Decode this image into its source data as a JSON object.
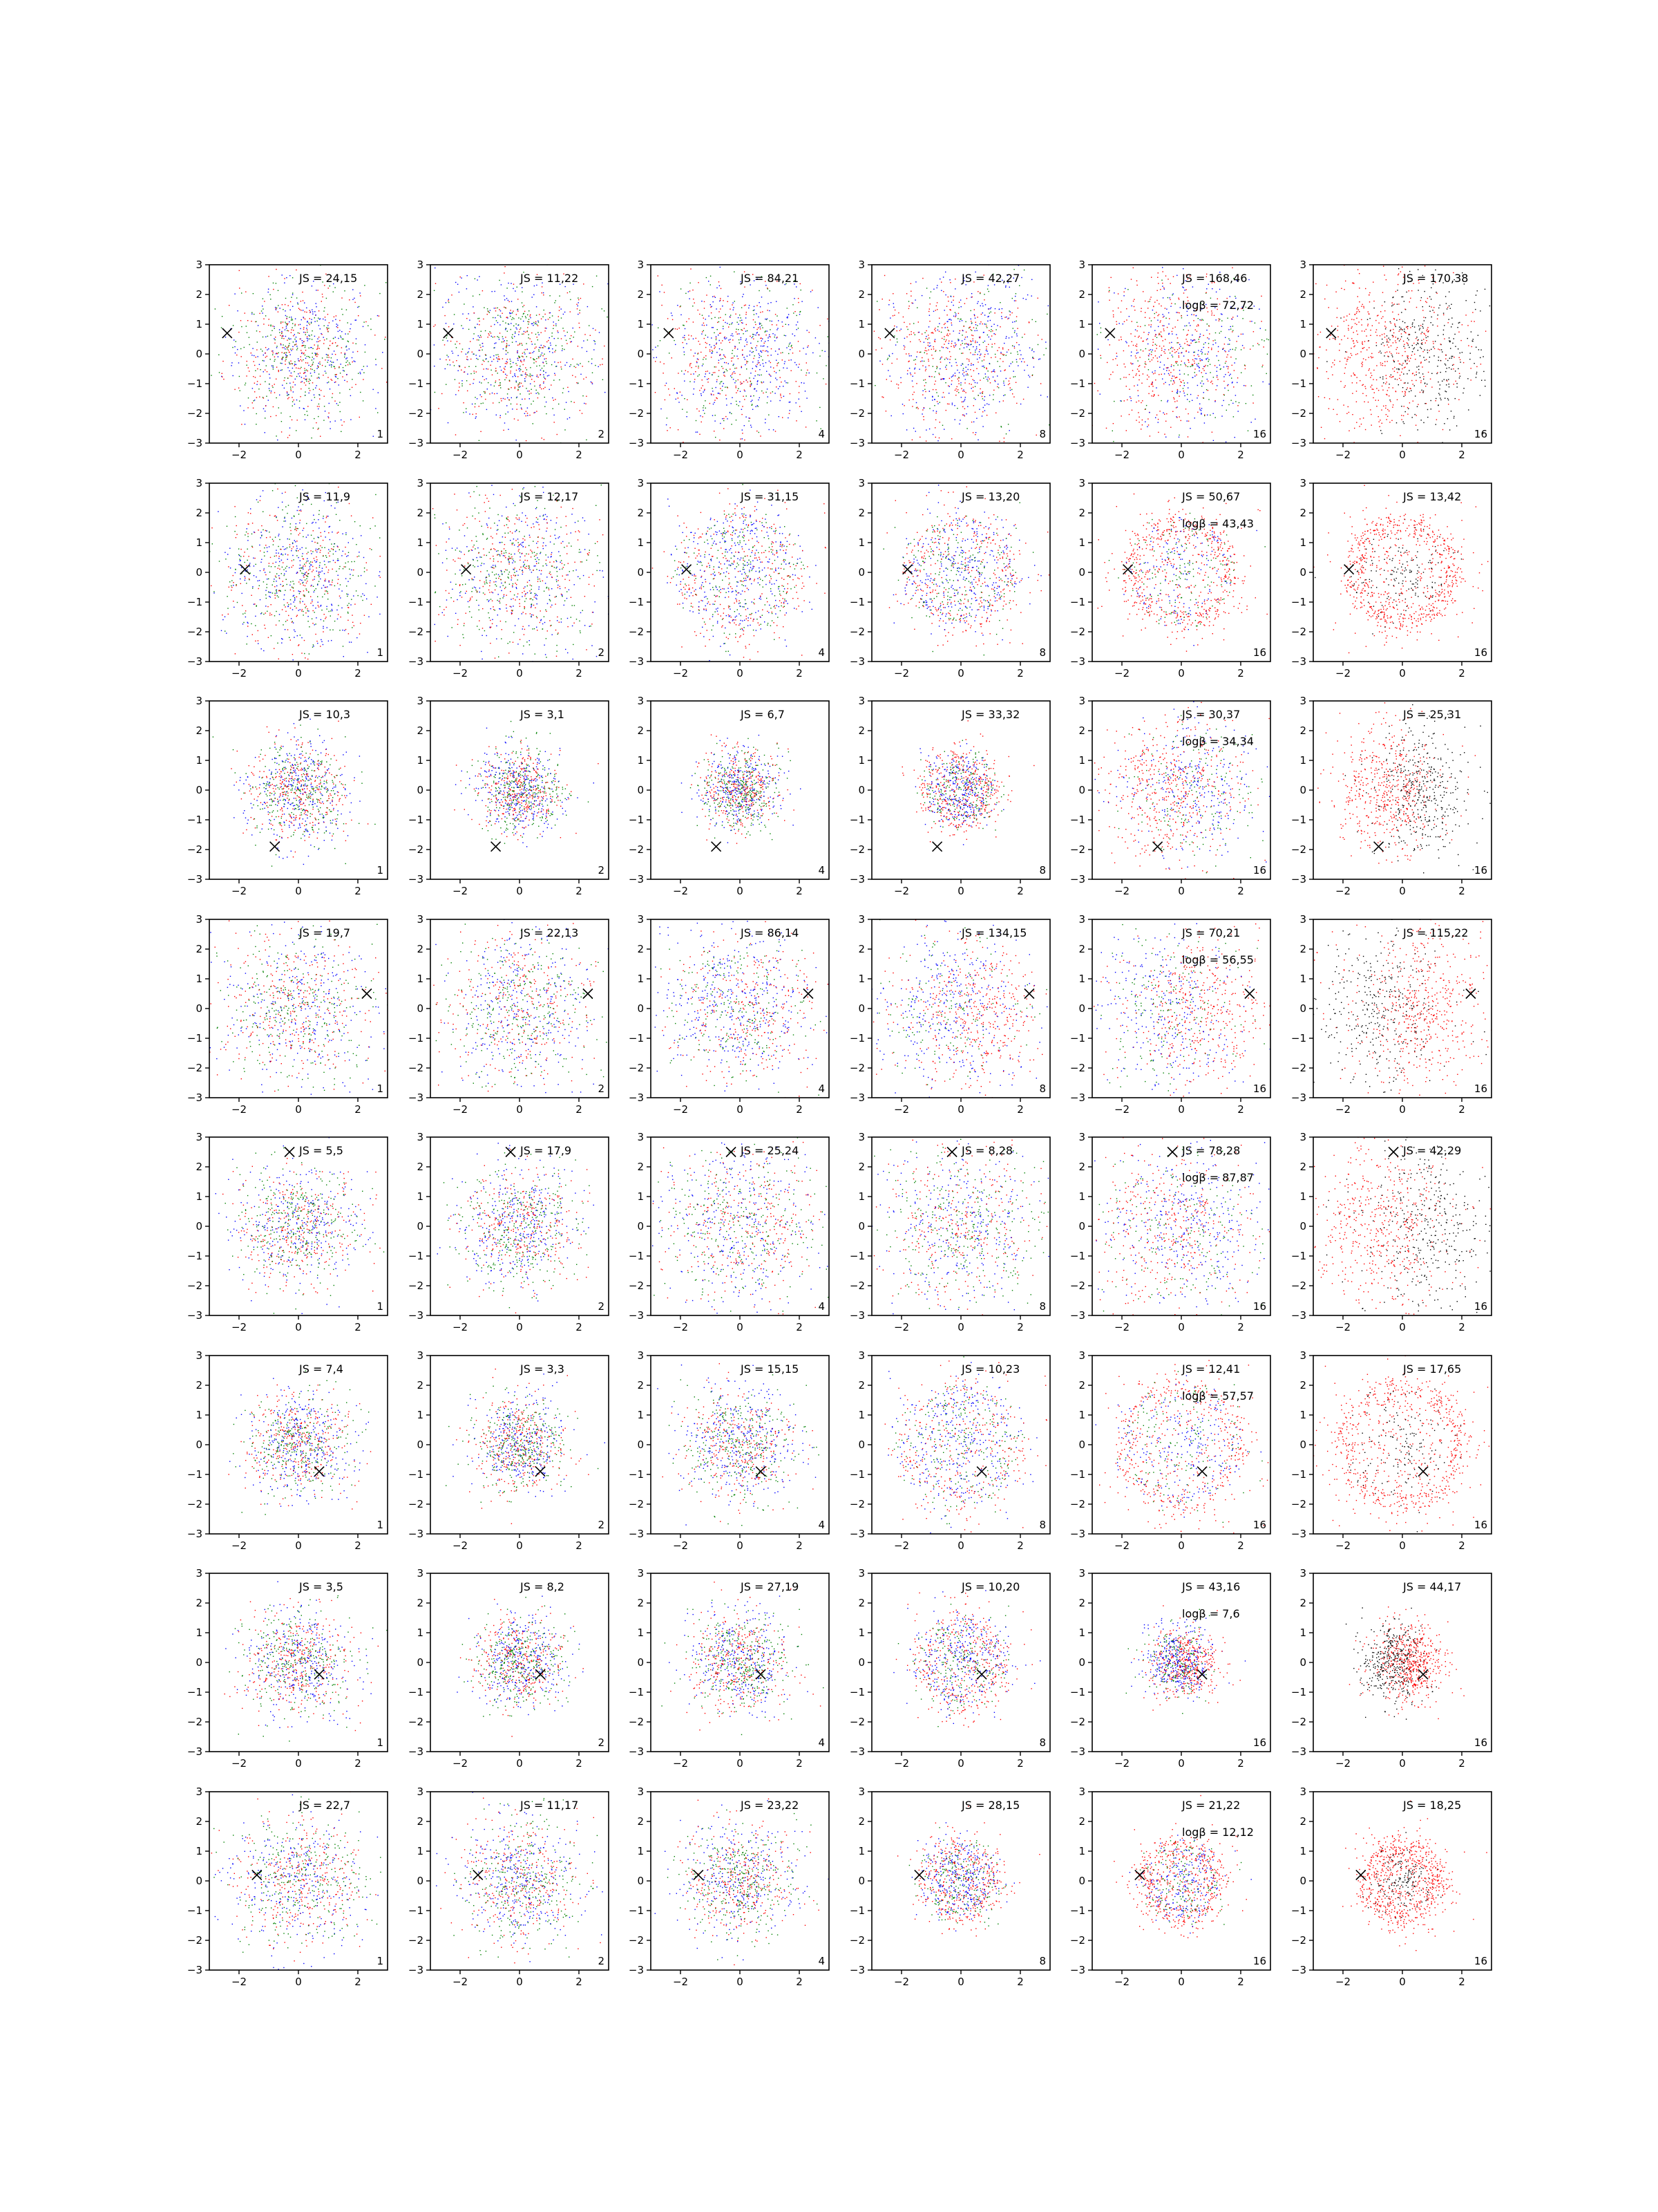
{
  "figure": {
    "rows": 8,
    "cols": 6,
    "xlim": [
      -3,
      3
    ],
    "ylim": [
      -3,
      3
    ],
    "xticks": [
      -2,
      0,
      2
    ],
    "yticks": [
      -3,
      -2,
      -1,
      0,
      1,
      2,
      3
    ],
    "colors": {
      "red": "#ff0000",
      "green": "#008000",
      "blue": "#0000ff",
      "black": "#000000",
      "frame": "#000000"
    }
  },
  "chart_data": [
    {
      "type": "scatter",
      "row": 1,
      "col": 1,
      "js": "JS = 24,15",
      "logb": "",
      "n": "1",
      "marker": [
        -2.4,
        0.7
      ],
      "spread": 1.25,
      "mix": "rgb",
      "sharp": 0
    },
    {
      "type": "scatter",
      "row": 1,
      "col": 2,
      "js": "JS = 11,22",
      "logb": "",
      "n": "2",
      "marker": [
        -2.4,
        0.7
      ],
      "spread": 1.35,
      "mix": "rgb",
      "sharp": 0
    },
    {
      "type": "scatter",
      "row": 1,
      "col": 3,
      "js": "JS = 84,21",
      "logb": "",
      "n": "4",
      "marker": [
        -2.4,
        0.7
      ],
      "spread": 1.4,
      "mix": "rgb-redleft",
      "sharp": 0.4
    },
    {
      "type": "scatter",
      "row": 1,
      "col": 4,
      "js": "JS = 42,27",
      "logb": "",
      "n": "8",
      "marker": [
        -2.4,
        0.7
      ],
      "spread": 1.35,
      "mix": "rgb-redleft",
      "sharp": 0.5
    },
    {
      "type": "scatter",
      "row": 1,
      "col": 5,
      "js": "JS = 168,46",
      "logb": "logβ = 72,72",
      "n": "16",
      "marker": [
        -2.4,
        0.7
      ],
      "spread": 1.4,
      "mix": "rgb-redleft",
      "sharp": 0.8
    },
    {
      "type": "scatter",
      "row": 1,
      "col": 6,
      "js": "JS = 170,38",
      "logb": "",
      "n": "16",
      "marker": [
        -2.4,
        0.7
      ],
      "spread": 1.4,
      "mix": "rk-redleft",
      "sharp": 0.8
    },
    {
      "type": "scatter",
      "row": 2,
      "col": 1,
      "js": "JS = 11,9",
      "logb": "",
      "n": "1",
      "marker": [
        -1.8,
        0.1
      ],
      "spread": 1.3,
      "mix": "rgb",
      "sharp": 0
    },
    {
      "type": "scatter",
      "row": 2,
      "col": 2,
      "js": "JS = 12,17",
      "logb": "",
      "n": "2",
      "marker": [
        -1.8,
        0.1
      ],
      "spread": 1.35,
      "mix": "rgb",
      "sharp": 0
    },
    {
      "type": "scatter",
      "row": 2,
      "col": 3,
      "js": "JS = 31,15",
      "logb": "",
      "n": "4",
      "marker": [
        -1.8,
        0.1
      ],
      "spread": 1.15,
      "mix": "rgb-ring",
      "sharp": 0.3
    },
    {
      "type": "scatter",
      "row": 2,
      "col": 4,
      "js": "JS = 13,20",
      "logb": "",
      "n": "8",
      "marker": [
        -1.8,
        0.1
      ],
      "spread": 1.05,
      "mix": "rgb-ring",
      "sharp": 0.3
    },
    {
      "type": "scatter",
      "row": 2,
      "col": 5,
      "js": "JS = 50,67",
      "logb": "logβ = 43,43",
      "n": "16",
      "marker": [
        -1.8,
        0.1
      ],
      "spread": 1.05,
      "mix": "rgb-ring",
      "sharp": 0.8
    },
    {
      "type": "scatter",
      "row": 2,
      "col": 6,
      "js": "JS = 13,42",
      "logb": "",
      "n": "16",
      "marker": [
        -1.8,
        0.1
      ],
      "spread": 1.05,
      "mix": "rk-ring",
      "sharp": 0.8
    },
    {
      "type": "scatter",
      "row": 3,
      "col": 1,
      "js": "JS = 10,3",
      "logb": "",
      "n": "1",
      "marker": [
        -0.8,
        -1.9
      ],
      "spread": 0.85,
      "mix": "rgb",
      "sharp": 0
    },
    {
      "type": "scatter",
      "row": 3,
      "col": 2,
      "js": "JS = 3,1",
      "logb": "",
      "n": "2",
      "marker": [
        -0.8,
        -1.9
      ],
      "spread": 0.7,
      "mix": "rgb",
      "sharp": 0
    },
    {
      "type": "scatter",
      "row": 3,
      "col": 3,
      "js": "JS = 6,7",
      "logb": "",
      "n": "4",
      "marker": [
        -0.8,
        -1.9
      ],
      "spread": 0.65,
      "mix": "rgb",
      "sharp": 0
    },
    {
      "type": "scatter",
      "row": 3,
      "col": 4,
      "js": "JS = 33,32",
      "logb": "",
      "n": "8",
      "marker": [
        -0.8,
        -1.9
      ],
      "spread": 0.65,
      "mix": "rgb-ring",
      "sharp": 0.4
    },
    {
      "type": "scatter",
      "row": 3,
      "col": 5,
      "js": "JS = 30,37",
      "logb": "logβ = 34,34",
      "n": "16",
      "marker": [
        -0.8,
        -1.9
      ],
      "spread": 1.2,
      "mix": "rgb-redleft",
      "sharp": 0.8
    },
    {
      "type": "scatter",
      "row": 3,
      "col": 6,
      "js": "JS = 25,31",
      "logb": "",
      "n": "16",
      "marker": [
        -0.8,
        -1.9
      ],
      "spread": 1.05,
      "mix": "rk-redleft",
      "sharp": 0.8
    },
    {
      "type": "scatter",
      "row": 4,
      "col": 1,
      "js": "JS = 19,7",
      "logb": "",
      "n": "1",
      "marker": [
        2.3,
        0.5
      ],
      "spread": 1.3,
      "mix": "rgb",
      "sharp": 0
    },
    {
      "type": "scatter",
      "row": 4,
      "col": 2,
      "js": "JS = 22,13",
      "logb": "",
      "n": "2",
      "marker": [
        2.3,
        0.5
      ],
      "spread": 1.3,
      "mix": "rgb",
      "sharp": 0
    },
    {
      "type": "scatter",
      "row": 4,
      "col": 3,
      "js": "JS = 86,14",
      "logb": "",
      "n": "4",
      "marker": [
        2.3,
        0.5
      ],
      "spread": 1.3,
      "mix": "rgb-redright",
      "sharp": 0.4
    },
    {
      "type": "scatter",
      "row": 4,
      "col": 4,
      "js": "JS = 134,15",
      "logb": "",
      "n": "8",
      "marker": [
        2.3,
        0.5
      ],
      "spread": 1.3,
      "mix": "rgb-redright",
      "sharp": 0.7
    },
    {
      "type": "scatter",
      "row": 4,
      "col": 5,
      "js": "JS = 70,21",
      "logb": "logβ = 56,55",
      "n": "16",
      "marker": [
        2.3,
        0.5
      ],
      "spread": 1.35,
      "mix": "rgb-redright",
      "sharp": 0.8
    },
    {
      "type": "scatter",
      "row": 4,
      "col": 6,
      "js": "JS = 115,22",
      "logb": "",
      "n": "16",
      "marker": [
        2.3,
        0.5
      ],
      "spread": 1.35,
      "mix": "rk-redright",
      "sharp": 0.8
    },
    {
      "type": "scatter",
      "row": 5,
      "col": 1,
      "js": "JS = 5,5",
      "logb": "",
      "n": "1",
      "marker": [
        -0.3,
        2.5
      ],
      "spread": 1.05,
      "mix": "rgb",
      "sharp": 0
    },
    {
      "type": "scatter",
      "row": 5,
      "col": 2,
      "js": "JS = 17,9",
      "logb": "",
      "n": "2",
      "marker": [
        -0.3,
        2.5
      ],
      "spread": 1.0,
      "mix": "rgb",
      "sharp": 0
    },
    {
      "type": "scatter",
      "row": 5,
      "col": 3,
      "js": "JS = 25,24",
      "logb": "",
      "n": "4",
      "marker": [
        -0.3,
        2.5
      ],
      "spread": 1.35,
      "mix": "rgb",
      "sharp": 0.2
    },
    {
      "type": "scatter",
      "row": 5,
      "col": 4,
      "js": "JS = 8,28",
      "logb": "",
      "n": "8",
      "marker": [
        -0.3,
        2.5
      ],
      "spread": 1.4,
      "mix": "rgb",
      "sharp": 0.2
    },
    {
      "type": "scatter",
      "row": 5,
      "col": 5,
      "js": "JS = 78,28",
      "logb": "logβ = 87,87",
      "n": "16",
      "marker": [
        -0.3,
        2.5
      ],
      "spread": 1.4,
      "mix": "rgb-redleft",
      "sharp": 0.5
    },
    {
      "type": "scatter",
      "row": 5,
      "col": 6,
      "js": "JS = 42,29",
      "logb": "",
      "n": "16",
      "marker": [
        -0.3,
        2.5
      ],
      "spread": 1.4,
      "mix": "rk-redleft",
      "sharp": 0.5
    },
    {
      "type": "scatter",
      "row": 6,
      "col": 1,
      "js": "JS = 7,4",
      "logb": "",
      "n": "1",
      "marker": [
        0.7,
        -0.9
      ],
      "spread": 0.85,
      "mix": "rgb",
      "sharp": 0
    },
    {
      "type": "scatter",
      "row": 6,
      "col": 2,
      "js": "JS = 3,3",
      "logb": "",
      "n": "2",
      "marker": [
        0.7,
        -0.9
      ],
      "spread": 0.8,
      "mix": "rgb",
      "sharp": 0
    },
    {
      "type": "scatter",
      "row": 6,
      "col": 3,
      "js": "JS = 15,15",
      "logb": "",
      "n": "4",
      "marker": [
        0.7,
        -0.9
      ],
      "spread": 0.95,
      "mix": "rgb",
      "sharp": 0.2
    },
    {
      "type": "scatter",
      "row": 6,
      "col": 4,
      "js": "JS = 10,23",
      "logb": "",
      "n": "8",
      "marker": [
        0.7,
        -0.9
      ],
      "spread": 1.15,
      "mix": "rgb-ring",
      "sharp": 0.3
    },
    {
      "type": "scatter",
      "row": 6,
      "col": 5,
      "js": "JS = 12,41",
      "logb": "logβ = 57,57",
      "n": "16",
      "marker": [
        0.7,
        -0.9
      ],
      "spread": 1.2,
      "mix": "rgb-ring",
      "sharp": 0.6
    },
    {
      "type": "scatter",
      "row": 6,
      "col": 6,
      "js": "JS = 17,65",
      "logb": "",
      "n": "16",
      "marker": [
        0.7,
        -0.9
      ],
      "spread": 1.25,
      "mix": "rk-ring",
      "sharp": 0.6
    },
    {
      "type": "scatter",
      "row": 7,
      "col": 1,
      "js": "JS = 3,5",
      "logb": "",
      "n": "1",
      "marker": [
        0.7,
        -0.4
      ],
      "spread": 0.9,
      "mix": "rgb",
      "sharp": 0
    },
    {
      "type": "scatter",
      "row": 7,
      "col": 2,
      "js": "JS = 8,2",
      "logb": "",
      "n": "2",
      "marker": [
        0.7,
        -0.4
      ],
      "spread": 0.75,
      "mix": "rgb",
      "sharp": 0
    },
    {
      "type": "scatter",
      "row": 7,
      "col": 3,
      "js": "JS = 27,19",
      "logb": "",
      "n": "4",
      "marker": [
        0.7,
        -0.4
      ],
      "spread": 0.85,
      "mix": "rgb",
      "sharp": 0.2
    },
    {
      "type": "scatter",
      "row": 7,
      "col": 4,
      "js": "JS = 10,20",
      "logb": "",
      "n": "8",
      "marker": [
        0.7,
        -0.4
      ],
      "spread": 0.85,
      "mix": "rgb-ring",
      "sharp": 0.3
    },
    {
      "type": "scatter",
      "row": 7,
      "col": 5,
      "js": "JS = 43,16",
      "logb": "logβ = 7,6",
      "n": "16",
      "marker": [
        0.7,
        -0.4
      ],
      "spread": 0.6,
      "mix": "rgb-redright",
      "sharp": 0.6
    },
    {
      "type": "scatter",
      "row": 7,
      "col": 6,
      "js": "JS = 44,17",
      "logb": "",
      "n": "16",
      "marker": [
        0.7,
        -0.4
      ],
      "spread": 0.65,
      "mix": "rk-redright",
      "sharp": 0.6
    },
    {
      "type": "scatter",
      "row": 8,
      "col": 1,
      "js": "JS = 22,7",
      "logb": "",
      "n": "1",
      "marker": [
        -1.4,
        0.2
      ],
      "spread": 1.1,
      "mix": "rgb",
      "sharp": 0
    },
    {
      "type": "scatter",
      "row": 8,
      "col": 2,
      "js": "JS = 11,17",
      "logb": "",
      "n": "2",
      "marker": [
        -1.4,
        0.2
      ],
      "spread": 1.0,
      "mix": "rgb",
      "sharp": 0
    },
    {
      "type": "scatter",
      "row": 8,
      "col": 3,
      "js": "JS = 23,22",
      "logb": "",
      "n": "4",
      "marker": [
        -1.4,
        0.2
      ],
      "spread": 0.95,
      "mix": "rgb",
      "sharp": 0.2
    },
    {
      "type": "scatter",
      "row": 8,
      "col": 4,
      "js": "JS = 28,15",
      "logb": "",
      "n": "8",
      "marker": [
        -1.4,
        0.2
      ],
      "spread": 0.7,
      "mix": "rgb-ring",
      "sharp": 0.4
    },
    {
      "type": "scatter",
      "row": 8,
      "col": 5,
      "js": "JS = 21,22",
      "logb": "logβ = 12,12",
      "n": "16",
      "marker": [
        -1.4,
        0.2
      ],
      "spread": 0.75,
      "mix": "rgb-ring",
      "sharp": 0.6
    },
    {
      "type": "scatter",
      "row": 8,
      "col": 6,
      "js": "JS = 18,25",
      "logb": "",
      "n": "16",
      "marker": [
        -1.4,
        0.2
      ],
      "spread": 0.75,
      "mix": "rk-ring",
      "sharp": 0.6
    }
  ]
}
